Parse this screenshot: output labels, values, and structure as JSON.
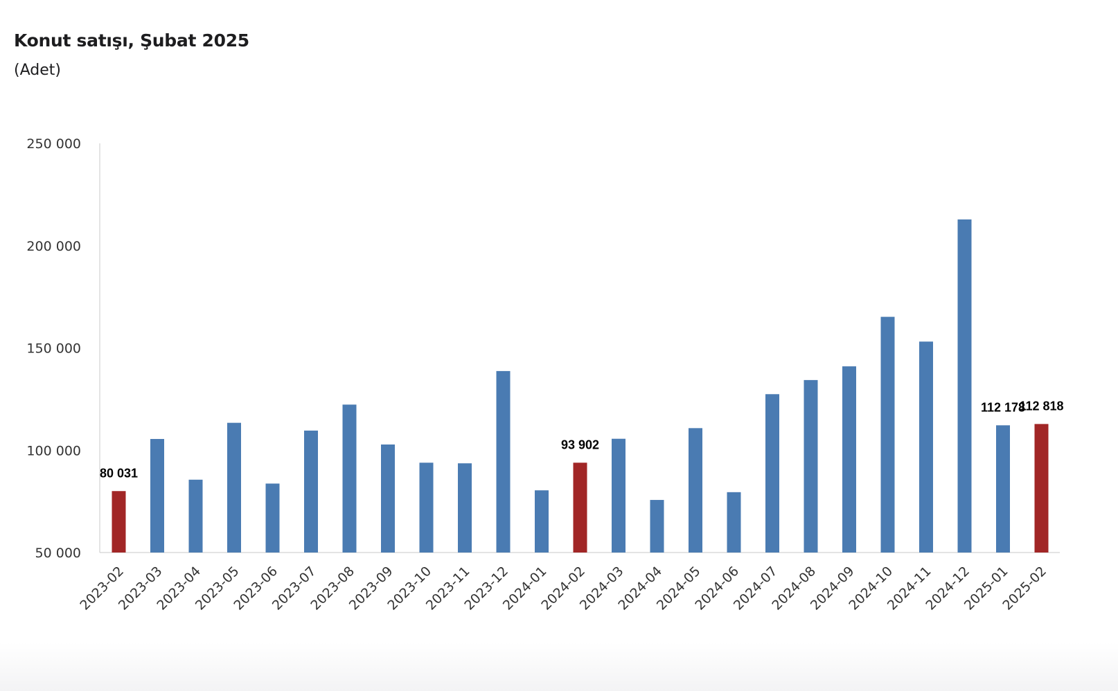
{
  "chart_data": {
    "type": "bar",
    "title": "Konut satışı, Şubat 2025",
    "subtitle": "(Adet)",
    "categories": [
      "2023-02",
      "2023-03",
      "2023-04",
      "2023-05",
      "2023-06",
      "2023-07",
      "2023-08",
      "2023-09",
      "2023-10",
      "2023-11",
      "2023-12",
      "2024-01",
      "2024-02",
      "2024-03",
      "2024-04",
      "2024-05",
      "2024-06",
      "2024-07",
      "2024-08",
      "2024-09",
      "2024-10",
      "2024-11",
      "2024-12",
      "2025-01",
      "2025-02"
    ],
    "values": [
      80031,
      105500,
      85600,
      113400,
      83700,
      109600,
      122300,
      102800,
      93900,
      93600,
      138700,
      80400,
      93902,
      105600,
      75700,
      110800,
      79500,
      127400,
      134300,
      141000,
      165200,
      153100,
      212800,
      112178,
      112818
    ],
    "highlighted": [
      0,
      12,
      24
    ],
    "data_labels": {
      "0": "80 031",
      "12": "93 902",
      "23": "112 178",
      "24": "112 818"
    },
    "ylim": [
      50000,
      250000
    ],
    "yticks": [
      50000,
      100000,
      150000,
      200000,
      250000
    ],
    "ytick_labels": [
      "50 000",
      "100 000",
      "150 000",
      "200 000",
      "250 000"
    ],
    "xlabel": "",
    "ylabel": "",
    "grid": false,
    "colors": {
      "bar": "#4a7bb2",
      "highlight": "#a12626",
      "axis": "#c8c8c8",
      "tick_text": "#333333",
      "label_text": "#000000"
    }
  }
}
